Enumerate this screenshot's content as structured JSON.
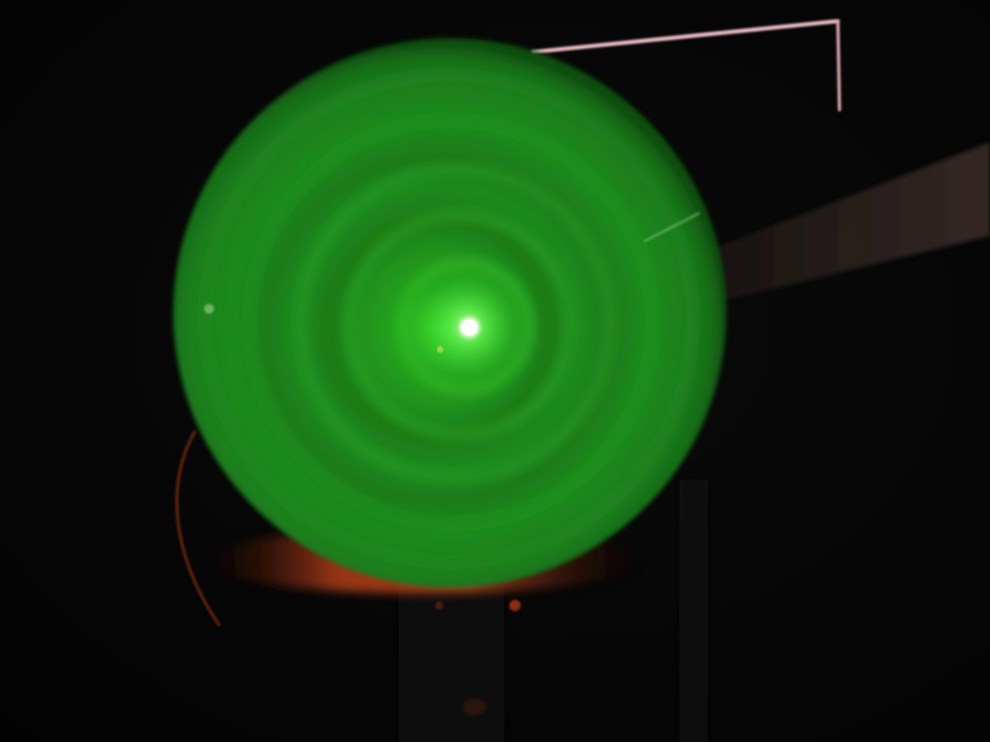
{
  "scene": {
    "description_label": "",
    "colors": {
      "background": "#050505",
      "screen_glow": "#2f9a2f",
      "screen_center": "#7dff6a",
      "beam_spot": "#f4fff2",
      "rim_orange": "#c0431c",
      "frame_pink": "#f3c7cf"
    },
    "ring_count": 5
  }
}
